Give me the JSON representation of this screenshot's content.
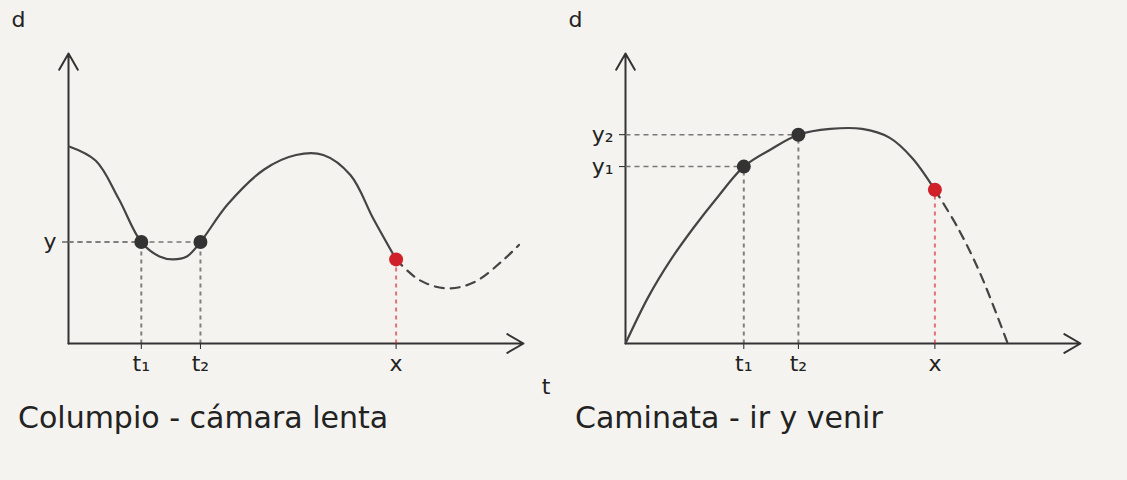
{
  "chart_data": [
    {
      "type": "line",
      "title": "Columpio - cámara lenta",
      "x_label": "t",
      "y_label": "d",
      "xlim": [
        0,
        10
      ],
      "ylim": [
        0,
        10
      ],
      "xticks": [
        {
          "value": 1.6,
          "label": "t₁"
        },
        {
          "value": 2.9,
          "label": "t₂"
        },
        {
          "value": 7.2,
          "label": "x"
        }
      ],
      "yticks": [
        {
          "value": 3.5,
          "label": "y"
        }
      ],
      "series": [
        {
          "type": "line",
          "line_style": "solid",
          "color": "#444444",
          "x": [
            0,
            0.6,
            1.1,
            1.6,
            2.0,
            2.3,
            2.6,
            2.9,
            3.5,
            4.3,
            5.0,
            5.6,
            6.2,
            6.7,
            7.2
          ],
          "values": [
            6.8,
            6.3,
            5.0,
            3.5,
            3.0,
            2.9,
            3.0,
            3.5,
            4.8,
            6.0,
            6.5,
            6.5,
            5.8,
            4.3,
            2.9
          ]
        },
        {
          "type": "line",
          "line_style": "dashed",
          "color": "#444444",
          "x": [
            7.2,
            7.7,
            8.3,
            8.9,
            9.5,
            9.9
          ],
          "values": [
            2.9,
            2.2,
            1.9,
            2.1,
            2.8,
            3.4
          ]
        },
        {
          "type": "scatter",
          "marker": "circle",
          "color": "#333333",
          "x": [
            1.6,
            2.9
          ],
          "values": [
            3.5,
            3.5
          ]
        },
        {
          "type": "scatter",
          "marker": "circle",
          "color": "#d0202a",
          "x": [
            7.2
          ],
          "values": [
            2.9
          ]
        }
      ]
    },
    {
      "type": "line",
      "title": "Caminata - ir y venir",
      "y_label": "d",
      "xlim": [
        0,
        10
      ],
      "ylim": [
        0,
        10
      ],
      "xticks": [
        {
          "value": 2.6,
          "label": "t₁"
        },
        {
          "value": 3.8,
          "label": "t₂"
        },
        {
          "value": 6.8,
          "label": "x"
        }
      ],
      "yticks": [
        {
          "value": 6.1,
          "label": "y₁"
        },
        {
          "value": 7.2,
          "label": "y₂"
        }
      ],
      "series": [
        {
          "type": "line",
          "line_style": "solid",
          "color": "#444444",
          "x": [
            0,
            0.5,
            1.0,
            1.5,
            2.0,
            2.6,
            3.2,
            3.8,
            4.5,
            5.2,
            5.8,
            6.3,
            6.8
          ],
          "values": [
            0,
            1.6,
            2.9,
            4.0,
            5.0,
            6.1,
            6.7,
            7.2,
            7.4,
            7.4,
            7.1,
            6.4,
            5.3
          ]
        },
        {
          "type": "line",
          "line_style": "dashed",
          "color": "#444444",
          "x": [
            6.8,
            7.3,
            7.8,
            8.4
          ],
          "values": [
            5.3,
            4.0,
            2.4,
            0
          ]
        },
        {
          "type": "scatter",
          "marker": "circle",
          "color": "#333333",
          "x": [
            2.6,
            3.8
          ],
          "values": [
            6.1,
            7.2
          ]
        },
        {
          "type": "scatter",
          "marker": "circle",
          "color": "#d0202a",
          "x": [
            6.8
          ],
          "values": [
            5.3
          ]
        }
      ]
    }
  ]
}
